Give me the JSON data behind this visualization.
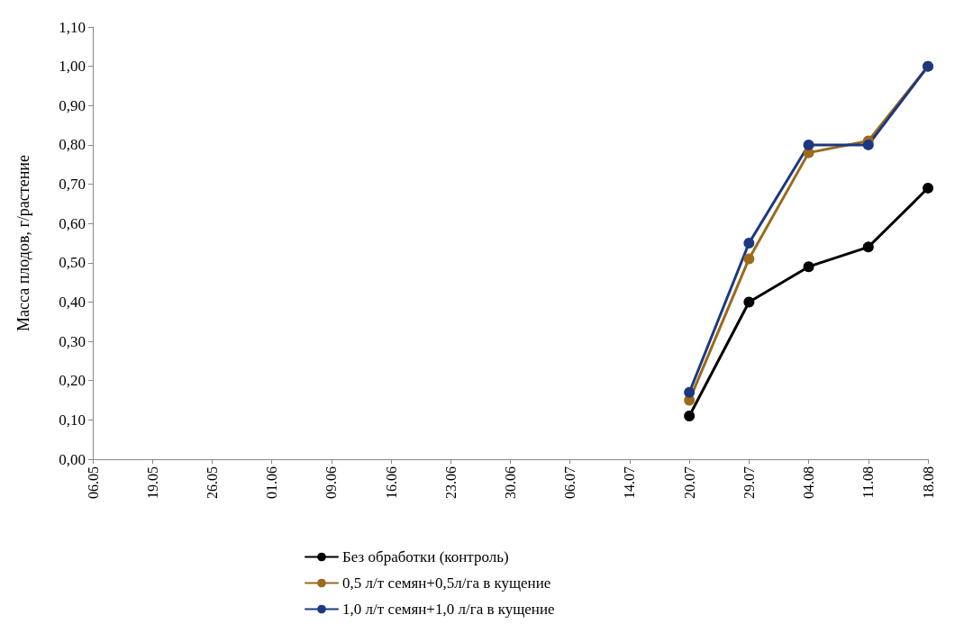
{
  "chart_data": {
    "type": "line",
    "ylabel": "Масса плодов, г/растение",
    "categories": [
      "06.05",
      "19.05",
      "26.05",
      "01.06",
      "09.06",
      "16.06",
      "23.06",
      "30.06",
      "06.07",
      "14.07",
      "20.07",
      "29.07",
      "04.08",
      "11.08",
      "18.08"
    ],
    "series": [
      {
        "name": "Без обработки (контроль)",
        "color": "#000000",
        "values": [
          null,
          null,
          null,
          null,
          null,
          null,
          null,
          null,
          null,
          null,
          0.11,
          0.4,
          0.49,
          0.54,
          0.69
        ]
      },
      {
        "name": "0,5 л/т семян+0,5л/га в кущение",
        "color": "#9c6a1c",
        "values": [
          null,
          null,
          null,
          null,
          null,
          null,
          null,
          null,
          null,
          null,
          0.15,
          0.51,
          0.78,
          0.81,
          1.0
        ]
      },
      {
        "name": "1,0 л/т семян+1,0 л/га в кущение",
        "color": "#1c3880",
        "values": [
          null,
          null,
          null,
          null,
          null,
          null,
          null,
          null,
          null,
          null,
          0.17,
          0.55,
          0.8,
          0.8,
          1.0
        ]
      }
    ],
    "ylim": [
      0,
      1.1
    ],
    "yticks": [
      {
        "value": 0,
        "label": "0,00"
      },
      {
        "value": 0.1,
        "label": "0,10"
      },
      {
        "value": 0.2,
        "label": "0,20"
      },
      {
        "value": 0.3,
        "label": "0,30"
      },
      {
        "value": 0.4,
        "label": "0,40"
      },
      {
        "value": 0.5,
        "label": "0,50"
      },
      {
        "value": 0.6,
        "label": "0,60"
      },
      {
        "value": 0.7,
        "label": "0,70"
      },
      {
        "value": 0.8,
        "label": "0,80"
      },
      {
        "value": 0.9,
        "label": "0,90"
      },
      {
        "value": 1.0,
        "label": "1,00"
      },
      {
        "value": 1.1,
        "label": "1,10"
      }
    ],
    "grid": false,
    "legend": "bottom",
    "marker": "circle",
    "line_style": "solid"
  }
}
